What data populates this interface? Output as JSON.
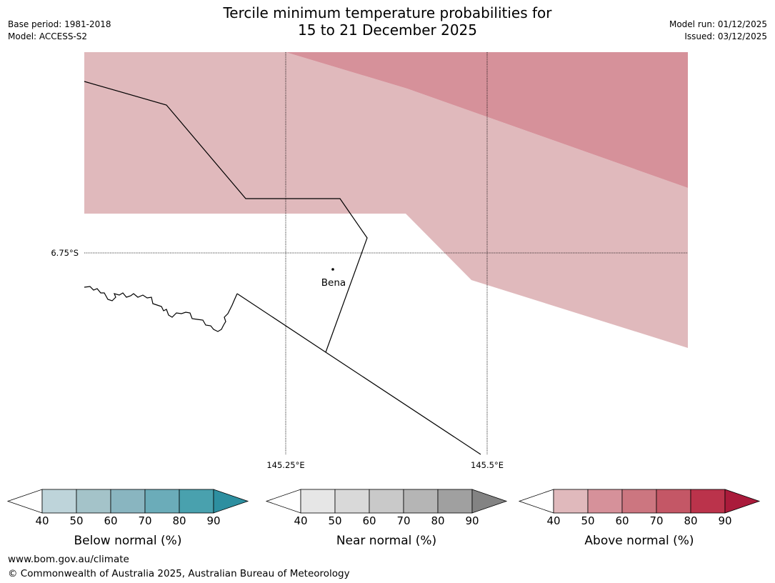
{
  "header": {
    "title_line1": "Tercile minimum temperature probabilities for",
    "title_line2": "15 to 21 December 2025",
    "base_period": "Base period: 1981-2018",
    "model": "Model: ACCESS-S2",
    "model_run": "Model run: 01/12/2025",
    "issued": "Issued: 03/12/2025"
  },
  "map": {
    "lat_label": "6.75°S",
    "lon_labels": [
      "145.25°E",
      "145.5°E"
    ],
    "place": "Bena"
  },
  "colorbars": [
    {
      "title": "Below normal (%)",
      "ticks": [
        "40",
        "50",
        "60",
        "70",
        "80",
        "90"
      ],
      "colors": [
        "#bed4da",
        "#a4c3c9",
        "#89b5c0",
        "#6bacb9",
        "#49a1ae",
        "#2d8fa0"
      ]
    },
    {
      "title": "Near normal (%)",
      "ticks": [
        "40",
        "50",
        "60",
        "70",
        "80",
        "90"
      ],
      "colors": [
        "#e6e6e6",
        "#d9d9d9",
        "#c9c9c9",
        "#b5b5b5",
        "#a0a0a0",
        "#838383"
      ]
    },
    {
      "title": "Above normal (%)",
      "ticks": [
        "40",
        "50",
        "60",
        "70",
        "80",
        "90"
      ],
      "colors": [
        "#e0b9bc",
        "#d6919a",
        "#cc7680",
        "#c45766",
        "#bb334b",
        "#aa1b3b"
      ]
    }
  ],
  "legend_colors": {
    "above_40_50": "#e0b9bc",
    "above_50_60": "#d6919a"
  },
  "footer": {
    "url": "www.bom.gov.au/climate",
    "copyright": "© Commonwealth of Australia 2025, Australian Bureau of Meteorology"
  }
}
